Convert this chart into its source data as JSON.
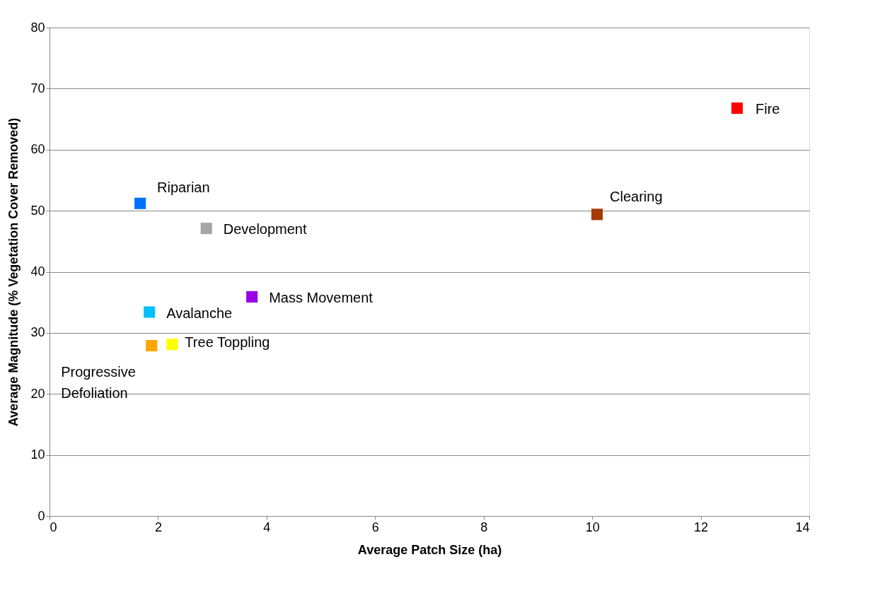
{
  "chart_data": {
    "type": "scatter",
    "xlabel": "Average Patch Size (ha)",
    "ylabel": "Average Magnitude (% Vegetation Cover Removed)",
    "xlim": [
      0,
      14
    ],
    "xticks": [
      0,
      2,
      4,
      6,
      8,
      10,
      12,
      14
    ],
    "ylim": [
      0,
      80
    ],
    "yticks": [
      0,
      10,
      20,
      30,
      40,
      50,
      60,
      70,
      80
    ],
    "grid": "y",
    "legend": false,
    "marker": "square",
    "series": [
      {
        "name": "Fire",
        "color": "#ff0000",
        "x": [
          12.67
        ],
        "values": [
          66.8
        ]
      },
      {
        "name": "Clearing",
        "color": "#a33c00",
        "x": [
          10.09
        ],
        "values": [
          49.4
        ]
      },
      {
        "name": "Riparian",
        "color": "#0070ff",
        "x": [
          1.67
        ],
        "values": [
          51.2
        ]
      },
      {
        "name": "Development",
        "color": "#a6a6a6",
        "x": [
          2.89
        ],
        "values": [
          47.1
        ]
      },
      {
        "name": "Mass Movement",
        "color": "#9900e6",
        "x": [
          3.73
        ],
        "values": [
          35.9
        ]
      },
      {
        "name": "Avalanche",
        "color": "#00bfff",
        "x": [
          1.84
        ],
        "values": [
          33.4
        ]
      },
      {
        "name": "Progressive Defoliation",
        "color": "#ffa500",
        "x": [
          1.88
        ],
        "values": [
          27.9
        ]
      },
      {
        "name": "Tree Toppling",
        "color": "#ffff00",
        "x": [
          2.26
        ],
        "values": [
          28.1
        ]
      }
    ]
  }
}
